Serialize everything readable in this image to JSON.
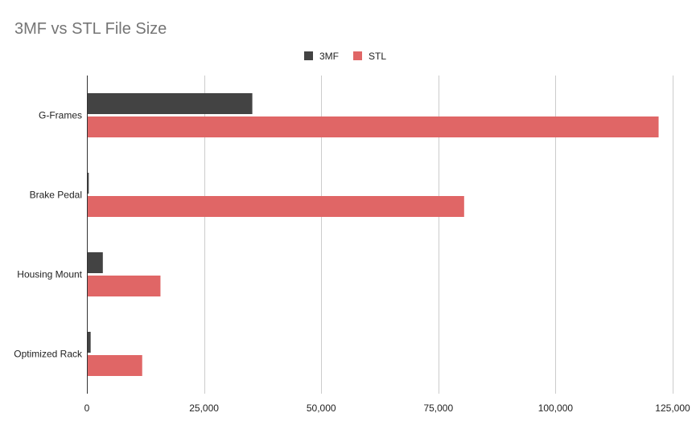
{
  "chart_data": {
    "type": "bar",
    "orientation": "horizontal",
    "title": "3MF vs STL File Size",
    "xlabel": "",
    "ylabel": "",
    "categories": [
      "G-Frames",
      "Brake Pedal",
      "Housing Mount",
      "Optimized Rack"
    ],
    "series": [
      {
        "name": "3MF",
        "values": [
          35300,
          400,
          3400,
          800
        ],
        "color": "#434343"
      },
      {
        "name": "STL",
        "values": [
          122000,
          80500,
          15700,
          11800
        ],
        "color": "#e06666"
      }
    ],
    "xlim": [
      0,
      125000
    ],
    "xticks": [
      0,
      25000,
      50000,
      75000,
      100000,
      125000
    ],
    "xtick_labels": [
      "0",
      "25,000",
      "50,000",
      "75,000",
      "100,000",
      "125,000"
    ],
    "grid": true,
    "legend_position": "top"
  }
}
